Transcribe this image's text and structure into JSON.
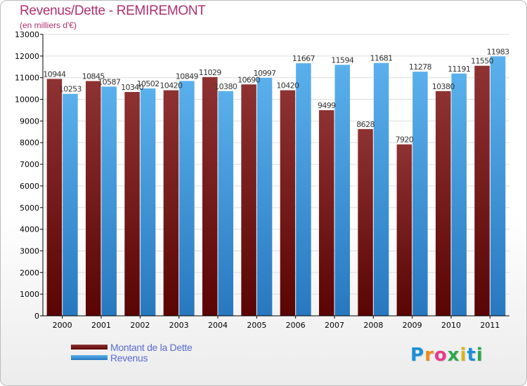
{
  "title": "Revenus/Dette - REMIREMONT",
  "subtitle": "(en milliers d'€)",
  "legend": {
    "items": [
      {
        "label": "Montant de la Dette",
        "color": "#7a1f1f"
      },
      {
        "label": "Revenus",
        "color": "#4aa3e3"
      }
    ]
  },
  "logo": {
    "text": "Proxiti",
    "letter_colors": [
      "#1a90d8",
      "#f08a1c",
      "#e83a8a",
      "#2aa84a",
      "#d8b41a",
      "#1a90d8",
      "#2aa84a"
    ]
  },
  "colors": {
    "title": "#b0306e",
    "debt": "#7a1f1f",
    "revenue": "#4aa3e3",
    "axis": "#000000",
    "grid": "#dddddd"
  },
  "chart_data": {
    "type": "bar",
    "categories": [
      "2000",
      "2001",
      "2002",
      "2003",
      "2004",
      "2005",
      "2006",
      "2007",
      "2008",
      "2009",
      "2010",
      "2011"
    ],
    "series": [
      {
        "name": "Montant de la Dette",
        "values": [
          10944,
          10845,
          10340,
          10420,
          11029,
          10690,
          10420,
          9499,
          8628,
          7920,
          10380,
          11550
        ],
        "labels": [
          "10944",
          "10845",
          "10340",
          "10420",
          "11029",
          "10690",
          "10420",
          "9499",
          "8628",
          "7920",
          "10380",
          "11550"
        ]
      },
      {
        "name": "Revenus",
        "values": [
          10253,
          10587,
          10502,
          10849,
          10380,
          10997,
          11667,
          11594,
          11681,
          11278,
          11191,
          11983
        ],
        "labels": [
          "10253",
          "10587",
          "10502",
          "10849",
          "10380",
          "10997",
          "11667",
          "11594",
          "11681",
          "11278",
          "11191",
          "11983"
        ]
      }
    ],
    "yticks": [
      "0",
      "1000",
      "2000",
      "3000",
      "4000",
      "5000",
      "6000",
      "7000",
      "8000",
      "9000",
      "10000",
      "11000",
      "12000",
      "13000"
    ],
    "ylim": [
      0,
      13000
    ],
    "grid": true,
    "legend_position": "bottom-left"
  }
}
